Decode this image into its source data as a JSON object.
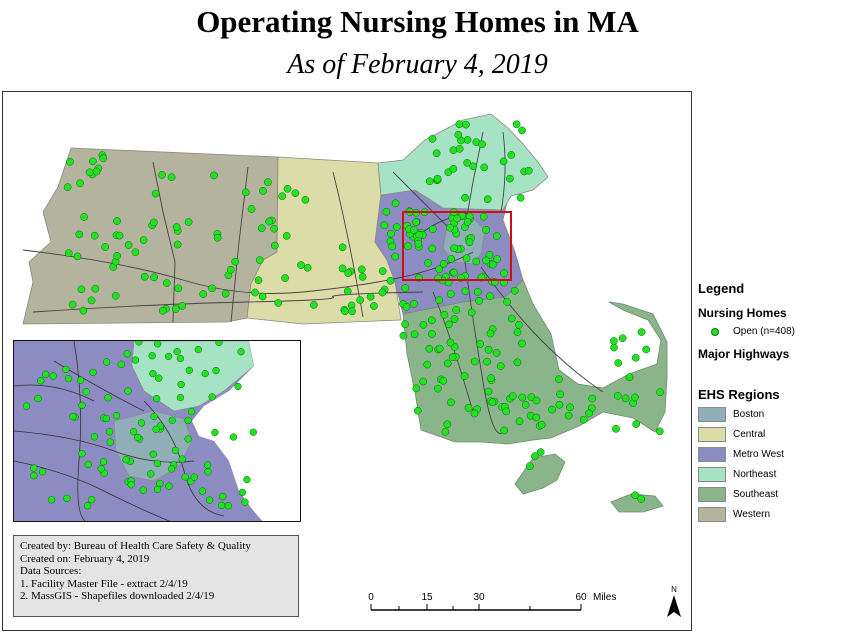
{
  "title": "Operating Nursing Homes in MA",
  "subtitle": "As of February 4, 2019",
  "legend": {
    "title": "Legend",
    "nursing_homes_heading": "Nursing Homes",
    "nursing_homes_item": "Open (n=408)",
    "highways_heading": "Major Highways",
    "regions_heading": "EHS Regions",
    "regions": [
      {
        "label": "Boston",
        "color": "#8faeb8"
      },
      {
        "label": "Central",
        "color": "#dcdca8"
      },
      {
        "label": "Metro West",
        "color": "#8d8cc2"
      },
      {
        "label": "Northeast",
        "color": "#a6e2c4"
      },
      {
        "label": "Southeast",
        "color": "#8ab58a"
      },
      {
        "label": "Western",
        "color": "#b3b39e"
      }
    ],
    "point_color": "#22e022"
  },
  "credits": {
    "line1": "Created by: Bureau of Health Care Safety & Quality",
    "line2": "Created on: February 4, 2019",
    "line3": "Data Sources:",
    "line4": "1. Facility Master File - extract 2/4/19",
    "line5": "2. MassGIS - Shapefiles downloaded 2/4/19"
  },
  "scale": {
    "ticks": [
      "0",
      "15",
      "30",
      "60"
    ],
    "unit": "Miles"
  },
  "north_label": "N"
}
